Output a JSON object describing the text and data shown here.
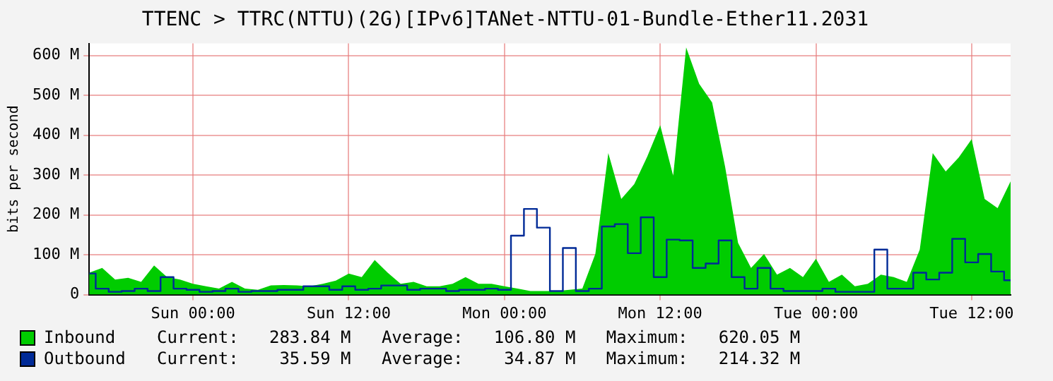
{
  "chart_data": {
    "type": "area",
    "title": "TTENC > TTRC(NTTU)(2G)[IPv6]TANet-NTTU-01-Bundle-Ether11.2031",
    "ylabel": "bits per second",
    "categories": [
      null,
      null,
      null,
      null,
      null,
      null,
      null,
      null,
      "Sun 00:00",
      null,
      null,
      null,
      null,
      null,
      null,
      null,
      null,
      null,
      null,
      null,
      "Sun 12:00",
      null,
      null,
      null,
      null,
      null,
      null,
      null,
      null,
      null,
      null,
      null,
      "Mon 00:00",
      null,
      null,
      null,
      null,
      null,
      null,
      null,
      null,
      null,
      null,
      null,
      "Mon 12:00",
      null,
      null,
      null,
      null,
      null,
      null,
      null,
      null,
      null,
      null,
      null,
      "Tue 00:00",
      null,
      null,
      null,
      null,
      null,
      null,
      null,
      null,
      null,
      null,
      null,
      "Tue 12:00",
      null,
      null,
      null
    ],
    "ylim": [
      0,
      630
    ],
    "yticks": [
      {
        "value": 0,
        "label": "0"
      },
      {
        "value": 100,
        "label": "100 M"
      },
      {
        "value": 200,
        "label": "200 M"
      },
      {
        "value": 300,
        "label": "300 M"
      },
      {
        "value": 400,
        "label": "400 M"
      },
      {
        "value": 500,
        "label": "500 M"
      },
      {
        "value": 600,
        "label": "600 M"
      }
    ],
    "grid": true,
    "legend": "bottom",
    "annotations": [
      "Current:   283.84 M   Average:   106.80 M   Maximum:   620.05 M",
      "Current:    35.59 M   Average:    34.87 M   Maximum:   214.32 M"
    ],
    "series": [
      {
        "name": "Inbound",
        "color": "#00cc00",
        "values": [
          55,
          67,
          38,
          42,
          32,
          73,
          44,
          38,
          27,
          21,
          15,
          32,
          15,
          12,
          23,
          24,
          23,
          21,
          27,
          35,
          53,
          44,
          87,
          55,
          27,
          32,
          21,
          21,
          27,
          44,
          27,
          27,
          21,
          15,
          9,
          9,
          9,
          12,
          15,
          102,
          355,
          240,
          277,
          346,
          425,
          298,
          620,
          529,
          482,
          321,
          130,
          67,
          102,
          50,
          67,
          44,
          90,
          32,
          50,
          21,
          27,
          50,
          44,
          32,
          113,
          355,
          309,
          344,
          390,
          240,
          217,
          284
        ]
      },
      {
        "name": "Outbound",
        "type": "step",
        "color": "#002a97",
        "values": [
          53,
          15,
          7,
          9,
          15,
          9,
          44,
          15,
          12,
          7,
          9,
          15,
          7,
          9,
          9,
          12,
          12,
          21,
          21,
          12,
          21,
          12,
          15,
          23,
          23,
          12,
          15,
          15,
          9,
          12,
          12,
          15,
          12,
          148,
          215,
          168,
          9,
          117,
          9,
          15,
          171,
          177,
          104,
          194,
          44,
          138,
          136,
          67,
          78,
          136,
          44,
          15,
          67,
          15,
          9,
          9,
          9,
          15,
          7,
          7,
          7,
          113,
          15,
          15,
          55,
          38,
          55,
          140,
          81,
          102,
          58,
          36
        ]
      }
    ]
  }
}
